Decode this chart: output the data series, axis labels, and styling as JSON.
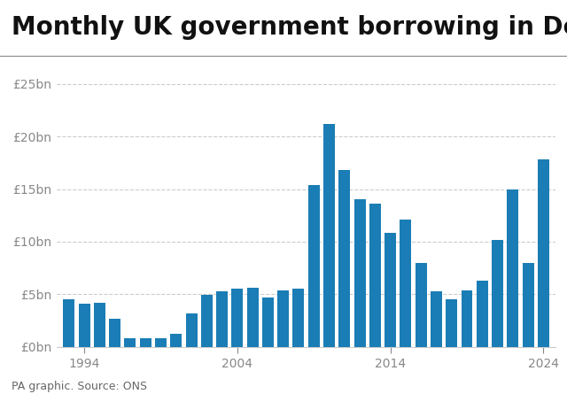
{
  "title": "Monthly UK government borrowing in December",
  "source_text": "PA graphic. Source: ONS",
  "bar_color": "#1b7db5",
  "background_color": "#ffffff",
  "years": [
    1993,
    1994,
    1995,
    1996,
    1997,
    1998,
    1999,
    2000,
    2001,
    2002,
    2003,
    2004,
    2005,
    2006,
    2007,
    2008,
    2009,
    2010,
    2011,
    2012,
    2013,
    2014,
    2015,
    2016,
    2017,
    2018,
    2019,
    2020,
    2021,
    2022,
    2023,
    2024
  ],
  "values": [
    4.5,
    4.1,
    4.2,
    2.7,
    0.8,
    0.8,
    0.8,
    1.2,
    3.2,
    4.9,
    5.3,
    5.5,
    5.6,
    4.7,
    5.4,
    5.5,
    15.4,
    21.2,
    16.8,
    14.0,
    13.6,
    10.8,
    12.1,
    8.0,
    5.3,
    4.5,
    5.4,
    6.3,
    10.2,
    15.0,
    8.0,
    17.8
  ],
  "yticks": [
    0,
    5,
    10,
    15,
    20,
    25
  ],
  "ytick_labels": [
    "£0bn",
    "£5bn",
    "£10bn",
    "£15bn",
    "£20bn",
    "£25bn"
  ],
  "xtick_years": [
    1994,
    2004,
    2014,
    2024
  ],
  "ylim": [
    0,
    27
  ],
  "grid_color": "#cccccc",
  "title_fontsize": 20,
  "tick_fontsize": 10,
  "source_fontsize": 9,
  "title_color": "#111111",
  "tick_color": "#888888",
  "source_color": "#666666",
  "spine_color": "#cccccc"
}
